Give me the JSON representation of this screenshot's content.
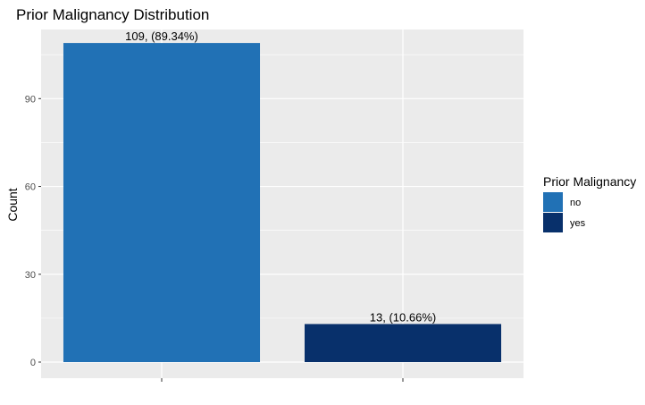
{
  "chart_data": {
    "type": "bar",
    "title": "Prior Malignancy Distribution",
    "xlabel": "",
    "ylabel": "Count",
    "categories": [
      "no",
      "yes"
    ],
    "values": [
      109,
      13
    ],
    "data_labels": [
      "109, (89.34%)",
      "13, (10.66%)"
    ],
    "colors": [
      "#2171b5",
      "#08306b"
    ],
    "ylim": [
      0,
      113
    ],
    "yticks": [
      0,
      30,
      60,
      90
    ],
    "grid": true,
    "panel_background": "#ebebeb",
    "legend": {
      "title": "Prior Malignancy",
      "position": "right",
      "entries": [
        "no",
        "yes"
      ]
    }
  }
}
